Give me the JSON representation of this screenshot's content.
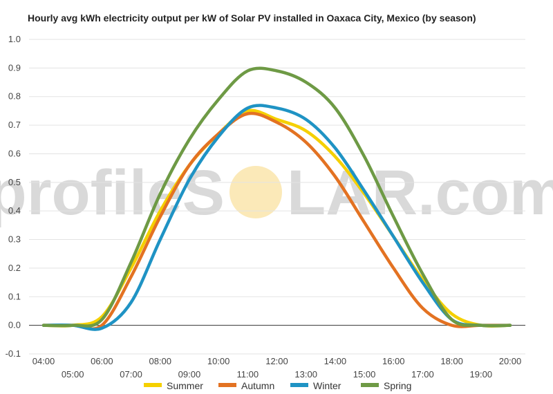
{
  "chart_data": {
    "type": "line",
    "title": "Hourly avg kWh electricity output per kW of Solar PV installed in Oaxaca City, Mexico (by season)",
    "xlabel": "",
    "ylabel": "",
    "ylim": [
      -0.1,
      1.0
    ],
    "yticks": [
      "1.0",
      "0.9",
      "0.8",
      "0.7",
      "0.6",
      "0.5",
      "0.4",
      "0.3",
      "0.2",
      "0.1",
      "0.0",
      "-0.1"
    ],
    "x": [
      "04:00",
      "05:00",
      "06:00",
      "07:00",
      "08:00",
      "09:00",
      "10:00",
      "11:00",
      "12:00",
      "13:00",
      "14:00",
      "15:00",
      "16:00",
      "17:00",
      "18:00",
      "19:00",
      "20:00"
    ],
    "grid": true,
    "legend_position": "bottom",
    "series": [
      {
        "name": "Summer",
        "color": "#f5d000",
        "values": [
          0.0,
          0.0,
          0.03,
          0.2,
          0.4,
          0.56,
          0.67,
          0.75,
          0.72,
          0.68,
          0.59,
          0.46,
          0.31,
          0.16,
          0.04,
          0.0,
          0.0
        ]
      },
      {
        "name": "Autumn",
        "color": "#e37222",
        "values": [
          0.0,
          0.0,
          0.0,
          0.17,
          0.38,
          0.56,
          0.67,
          0.74,
          0.71,
          0.64,
          0.52,
          0.36,
          0.2,
          0.06,
          0.0,
          0.0,
          0.0
        ]
      },
      {
        "name": "Winter",
        "color": "#1f93c4",
        "values": [
          0.0,
          0.0,
          -0.01,
          0.08,
          0.3,
          0.51,
          0.66,
          0.76,
          0.76,
          0.72,
          0.62,
          0.47,
          0.31,
          0.15,
          0.02,
          0.0,
          0.0
        ]
      },
      {
        "name": "Spring",
        "color": "#6e9a45",
        "values": [
          0.0,
          0.0,
          0.02,
          0.22,
          0.46,
          0.65,
          0.79,
          0.89,
          0.89,
          0.85,
          0.76,
          0.59,
          0.38,
          0.18,
          0.02,
          0.0,
          0.0
        ]
      }
    ]
  },
  "watermark": {
    "left": "profileS",
    "right": "LAR.com",
    "sun_color": "#fbe9b8"
  }
}
